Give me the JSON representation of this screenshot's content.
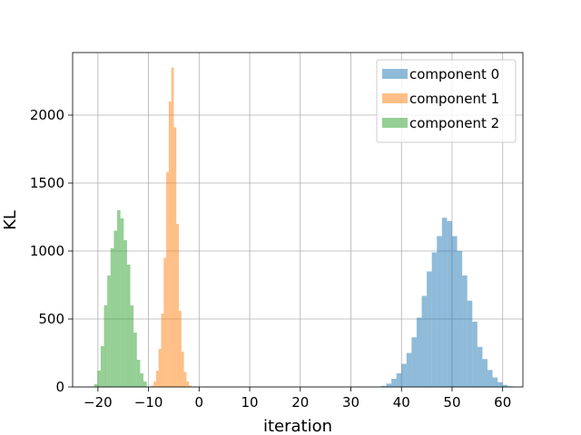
{
  "chart_data": {
    "type": "bar",
    "subtype": "histogram",
    "title": "",
    "xlabel": "iteration",
    "ylabel": "KL",
    "xlim": [
      -25,
      64
    ],
    "ylim": [
      0,
      2460
    ],
    "xticks": [
      -20,
      -10,
      0,
      10,
      20,
      30,
      40,
      50,
      60
    ],
    "xtick_labels": [
      "−20",
      "−10",
      "0",
      "10",
      "20",
      "30",
      "40",
      "50",
      "60"
    ],
    "yticks": [
      0,
      500,
      1000,
      1500,
      2000
    ],
    "ytick_labels": [
      "0",
      "500",
      "1000",
      "1500",
      "2000"
    ],
    "grid": true,
    "legend_position": "top-right",
    "bar_opacity": 0.5,
    "series": [
      {
        "name": "component 0",
        "color": "#1f77b4",
        "x_start": 36.0,
        "bin_width": 1.0,
        "counts": [
          8,
          25,
          60,
          100,
          170,
          250,
          365,
          510,
          670,
          850,
          990,
          1110,
          1245,
          1220,
          1110,
          1000,
          820,
          635,
          480,
          295,
          205,
          125,
          70,
          35,
          15,
          5
        ]
      },
      {
        "name": "component 1",
        "color": "#ff7f0e",
        "x_start": -9.5,
        "bin_width": 0.5,
        "counts": [
          10,
          40,
          120,
          280,
          540,
          950,
          1580,
          2100,
          2350,
          1910,
          1200,
          560,
          260,
          110,
          40,
          10
        ]
      },
      {
        "name": "component 2",
        "color": "#2ca02c",
        "x_start": -20.75,
        "bin_width": 0.65,
        "counts": [
          20,
          120,
          300,
          600,
          820,
          1020,
          1150,
          1300,
          1240,
          1080,
          900,
          600,
          400,
          200,
          100,
          40
        ]
      }
    ]
  }
}
